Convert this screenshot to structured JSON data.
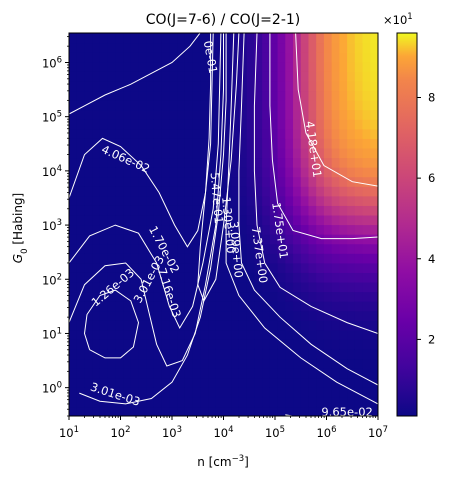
{
  "chart_data": {
    "type": "heatmap",
    "title": "CO(J=7-6) / CO(J=2-1)",
    "xlabel": "n [cm$^{-3}$]",
    "ylabel": "$G_0$ [Habing]",
    "x_scale": "log",
    "y_scale": "log",
    "xlim": [
      10,
      10000000
    ],
    "ylim": [
      0.3,
      3500000
    ],
    "x_ticks": [
      {
        "value": 10,
        "base": "10",
        "exp": "1"
      },
      {
        "value": 100,
        "base": "10",
        "exp": "2"
      },
      {
        "value": 1000,
        "base": "10",
        "exp": "3"
      },
      {
        "value": 10000,
        "base": "10",
        "exp": "4"
      },
      {
        "value": 100000,
        "base": "10",
        "exp": "5"
      },
      {
        "value": 1000000,
        "base": "10",
        "exp": "6"
      },
      {
        "value": 10000000,
        "base": "10",
        "exp": "7"
      }
    ],
    "y_ticks": [
      {
        "value": 1,
        "base": "10",
        "exp": "0"
      },
      {
        "value": 10,
        "base": "10",
        "exp": "1"
      },
      {
        "value": 100,
        "base": "10",
        "exp": "2"
      },
      {
        "value": 1000,
        "base": "10",
        "exp": "3"
      },
      {
        "value": 10000,
        "base": "10",
        "exp": "4"
      },
      {
        "value": 100000,
        "base": "10",
        "exp": "5"
      },
      {
        "value": 1000000,
        "base": "10",
        "exp": "6"
      }
    ],
    "colormap": "plasma",
    "colorbar": {
      "range": [
        0.1,
        9.6
      ],
      "ticks": [
        "2",
        "4",
        "6",
        "8"
      ],
      "tick_values": [
        2,
        4,
        6,
        8
      ],
      "multiplier": "×10",
      "multiplier_exp": "1"
    },
    "contour_labels": [
      {
        "text": "3.01e-03",
        "log_n": 1.9,
        "log_g0": -0.12,
        "angle": 18
      },
      {
        "text": "1.26e-03",
        "log_n": 1.85,
        "log_g0": 1.85,
        "angle": -40
      },
      {
        "text": "3.01e-03",
        "log_n": 2.55,
        "log_g0": 2.0,
        "angle": -62
      },
      {
        "text": "7.16e-03",
        "log_n": 2.95,
        "log_g0": 1.75,
        "angle": 72
      },
      {
        "text": "1.70e-02",
        "log_n": 2.85,
        "log_g0": 2.55,
        "angle": 62
      },
      {
        "text": "4.06e-02",
        "log_n": 2.1,
        "log_g0": 4.22,
        "angle": 24
      },
      {
        "text": "9.65e-02",
        "log_n": 6.4,
        "log_g0": -0.45,
        "angle": 0
      },
      {
        "text": "5.47e-01",
        "log_n": 3.87,
        "log_g0": 3.5,
        "angle": 85
      },
      {
        "text": "1.30e+00",
        "log_n": 4.1,
        "log_g0": 3.0,
        "angle": 85
      },
      {
        "text": "3.09e+00",
        "log_n": 4.25,
        "log_g0": 2.55,
        "angle": 85
      },
      {
        "text": "7.37e+00",
        "log_n": 4.7,
        "log_g0": 2.45,
        "angle": 82
      },
      {
        "text": "1.75e+01",
        "log_n": 5.1,
        "log_g0": 2.9,
        "angle": 82
      },
      {
        "text": "4.18e+01",
        "log_n": 5.75,
        "log_g0": 4.4,
        "angle": 82
      },
      {
        "text": "0e-01",
        "log_n": 3.75,
        "log_g0": 6.1,
        "angle": 80
      }
    ]
  }
}
